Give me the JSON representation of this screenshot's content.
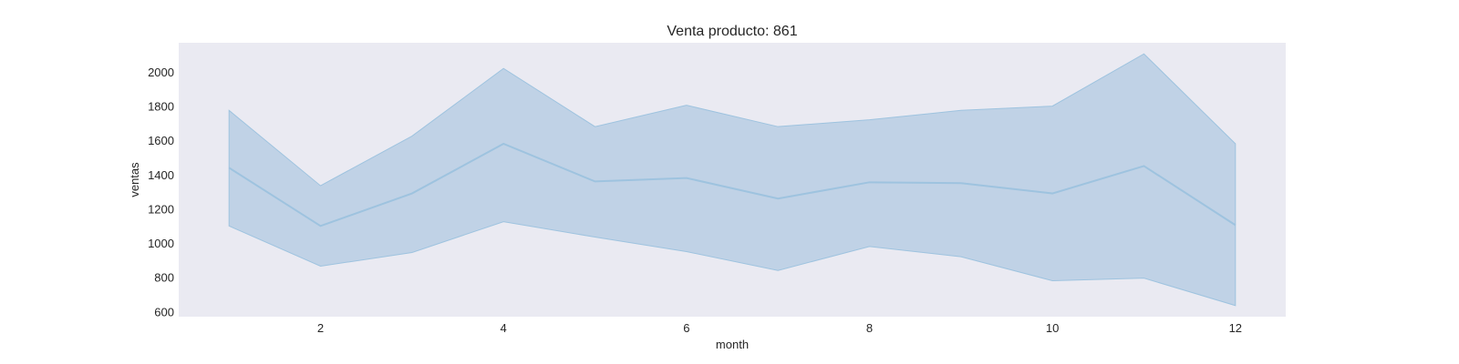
{
  "chart_data": {
    "type": "line",
    "title": "Venta producto: 861",
    "xlabel": "month",
    "ylabel": "ventas",
    "xlim": [
      0.45,
      12.55
    ],
    "ylim": [
      570,
      2170
    ],
    "xticks": [
      2,
      4,
      6,
      8,
      10,
      12
    ],
    "yticks": [
      600,
      800,
      1000,
      1200,
      1400,
      1600,
      1800,
      2000
    ],
    "grid": false,
    "colors": {
      "plot_bg": "#eaeaf2",
      "line": "#9ec3df",
      "band": "#a3c1dd"
    },
    "series": [
      {
        "x": [
          1,
          2,
          3,
          4,
          5,
          6,
          7,
          8,
          9,
          10,
          11,
          12
        ],
        "values": [
          1440,
          1100,
          1290,
          1580,
          1360,
          1380,
          1260,
          1355,
          1350,
          1290,
          1450,
          1105
        ],
        "upper": [
          1775,
          1335,
          1625,
          2020,
          1680,
          1805,
          1680,
          1720,
          1775,
          1800,
          2105,
          1580
        ],
        "lower": [
          1100,
          865,
          945,
          1125,
          1035,
          950,
          840,
          980,
          920,
          780,
          795,
          635
        ]
      }
    ]
  }
}
